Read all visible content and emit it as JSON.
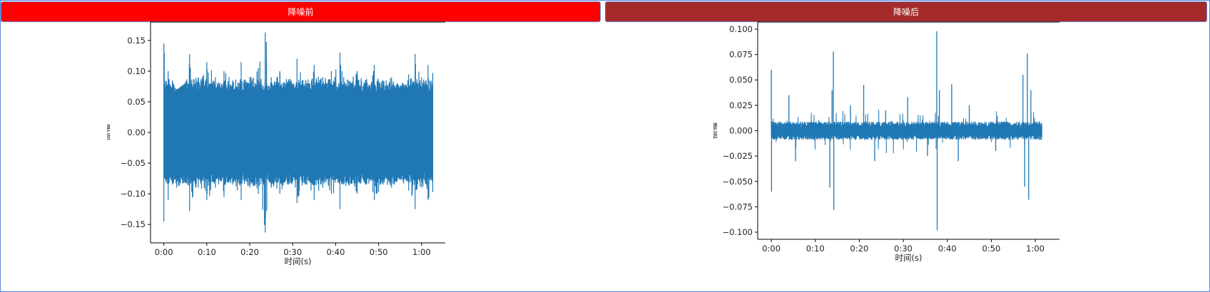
{
  "colors": {
    "before_button": "#ff0000",
    "after_button": "#a52a2a",
    "wave": "#1f77b4"
  },
  "buttons": {
    "before_label": "降噪前",
    "after_label": "降噪后"
  },
  "chart_data": [
    {
      "type": "line",
      "title": "",
      "xlabel": "时间(s)",
      "ylabel": "振幅",
      "x_ticks": [
        "0:00",
        "0:10",
        "0:20",
        "0:30",
        "0:40",
        "0:50",
        "1:00"
      ],
      "x_tick_values_s": [
        0,
        10,
        20,
        30,
        40,
        50,
        60
      ],
      "y_ticks": [
        "−0.15",
        "−0.10",
        "−0.05",
        "0.00",
        "0.05",
        "0.10",
        "0.15"
      ],
      "y_tick_values": [
        -0.15,
        -0.1,
        -0.05,
        0.0,
        0.05,
        0.1,
        0.15
      ],
      "xlim": [
        -3.1,
        65.5
      ],
      "ylim": [
        -0.18,
        0.18
      ],
      "duration_s": 62.6,
      "envelope": {
        "t": [
          0,
          1,
          2,
          3,
          5,
          6,
          8,
          10,
          12,
          14,
          16,
          18,
          20,
          22,
          23.6,
          25,
          27,
          29,
          31,
          33,
          35,
          37,
          39,
          41,
          43,
          45,
          47,
          49,
          51,
          53,
          55,
          57,
          58.5,
          60,
          61.5,
          62.6
        ],
        "peak": [
          0.145,
          0.1,
          0.085,
          0.07,
          0.08,
          0.128,
          0.09,
          0.115,
          0.09,
          0.1,
          0.085,
          0.115,
          0.09,
          0.105,
          0.163,
          0.09,
          0.1,
          0.085,
          0.12,
          0.085,
          0.11,
          0.09,
          0.1,
          0.13,
          0.085,
          0.1,
          0.085,
          0.11,
          0.085,
          0.09,
          0.075,
          0.095,
          0.128,
          0.09,
          0.11,
          0.097
        ],
        "trough": [
          -0.145,
          -0.11,
          -0.085,
          -0.09,
          -0.08,
          -0.128,
          -0.09,
          -0.11,
          -0.09,
          -0.105,
          -0.085,
          -0.11,
          -0.09,
          -0.1,
          -0.163,
          -0.09,
          -0.1,
          -0.085,
          -0.115,
          -0.085,
          -0.11,
          -0.09,
          -0.1,
          -0.125,
          -0.085,
          -0.1,
          -0.085,
          -0.11,
          -0.085,
          -0.09,
          -0.075,
          -0.095,
          -0.125,
          -0.09,
          -0.11,
          -0.097
        ]
      }
    },
    {
      "type": "line",
      "title": "",
      "xlabel": "时间(s)",
      "ylabel": "振幅",
      "x_ticks": [
        "0:00",
        "0:10",
        "0:20",
        "0:30",
        "0:40",
        "0:50",
        "1:00"
      ],
      "x_tick_values_s": [
        0,
        10,
        20,
        30,
        40,
        50,
        60
      ],
      "y_ticks": [
        "−0.100",
        "−0.075",
        "−0.050",
        "−0.025",
        "0.000",
        "0.025",
        "0.050",
        "0.075",
        "0.100"
      ],
      "y_tick_values": [
        -0.1,
        -0.075,
        -0.05,
        -0.025,
        0.0,
        0.025,
        0.05,
        0.075,
        0.1
      ],
      "xlim": [
        -3.1,
        65.5
      ],
      "ylim": [
        -0.107,
        0.107
      ],
      "duration_s": 61.5,
      "baseline_amplitude": 0.006,
      "spikes": [
        {
          "t": 0.0,
          "v": 0.06
        },
        {
          "t": 0.05,
          "v": -0.06
        },
        {
          "t": 4.0,
          "v": 0.035
        },
        {
          "t": 5.5,
          "v": -0.03
        },
        {
          "t": 13.3,
          "v": -0.056
        },
        {
          "t": 13.8,
          "v": 0.04
        },
        {
          "t": 14.1,
          "v": 0.078
        },
        {
          "t": 14.2,
          "v": -0.078
        },
        {
          "t": 18.0,
          "v": 0.025
        },
        {
          "t": 21.0,
          "v": 0.045
        },
        {
          "t": 23.5,
          "v": -0.03
        },
        {
          "t": 26.0,
          "v": 0.02
        },
        {
          "t": 31.0,
          "v": 0.033
        },
        {
          "t": 35.5,
          "v": -0.025
        },
        {
          "t": 37.6,
          "v": 0.098
        },
        {
          "t": 37.7,
          "v": -0.098
        },
        {
          "t": 38.2,
          "v": 0.04
        },
        {
          "t": 41.0,
          "v": 0.046
        },
        {
          "t": 42.5,
          "v": -0.03
        },
        {
          "t": 45.0,
          "v": 0.025
        },
        {
          "t": 51.0,
          "v": -0.02
        },
        {
          "t": 57.2,
          "v": 0.055
        },
        {
          "t": 57.6,
          "v": -0.055
        },
        {
          "t": 58.2,
          "v": 0.076
        },
        {
          "t": 58.5,
          "v": -0.068
        },
        {
          "t": 59.0,
          "v": 0.04
        }
      ]
    }
  ]
}
